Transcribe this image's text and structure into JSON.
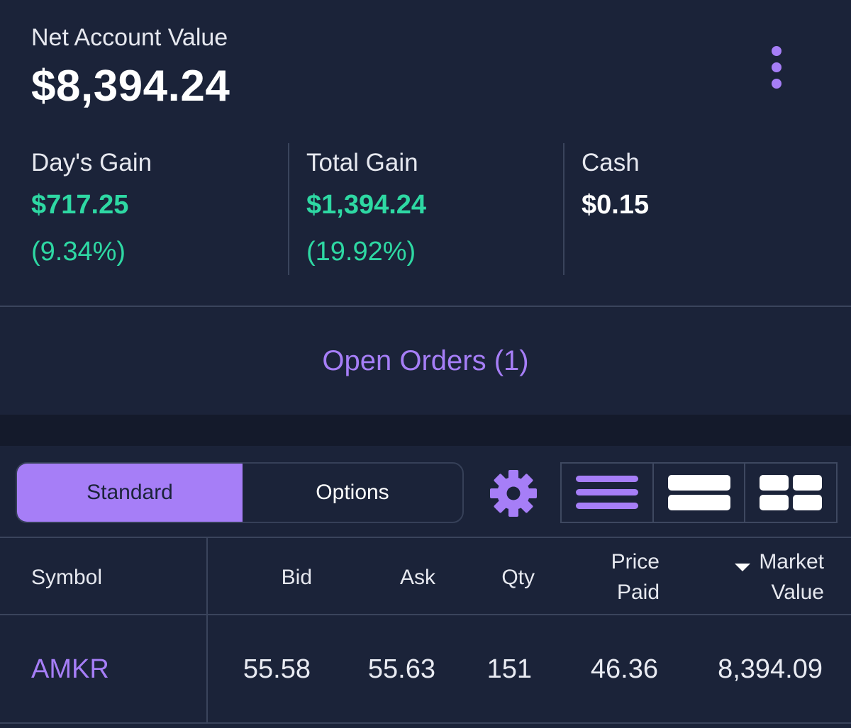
{
  "summary": {
    "net_label": "Net Account Value",
    "net_value": "$8,394.24",
    "days_gain": {
      "label": "Day's Gain",
      "value": "$717.25",
      "percent": "(9.34%)"
    },
    "total_gain": {
      "label": "Total Gain",
      "value": "$1,394.24",
      "percent": "(19.92%)"
    },
    "cash": {
      "label": "Cash",
      "value": "$0.15"
    }
  },
  "open_orders": {
    "label": "Open Orders (1)"
  },
  "toolbar": {
    "tabs": [
      {
        "label": "Standard",
        "active": true
      },
      {
        "label": "Options",
        "active": false
      }
    ],
    "icons": [
      "gear-icon",
      "list-view-icon",
      "row-view-icon",
      "grid-view-icon"
    ]
  },
  "table": {
    "headers": {
      "symbol": "Symbol",
      "bid": "Bid",
      "ask": "Ask",
      "qty": "Qty",
      "price_paid_line1": "Price",
      "price_paid_line2": "Paid",
      "market_value_line1": "Market",
      "market_value_line2": "Value"
    },
    "sort": {
      "column": "market_value",
      "direction": "desc"
    },
    "rows": [
      {
        "symbol": "AMKR",
        "bid": "55.58",
        "ask": "55.63",
        "qty": "151",
        "price_paid": "46.36",
        "market_value": "8,394.09"
      }
    ]
  },
  "colors": {
    "background": "#1b2339",
    "accent": "#a67ef7",
    "gain": "#2ed8a3",
    "divider": "#3a445c"
  }
}
